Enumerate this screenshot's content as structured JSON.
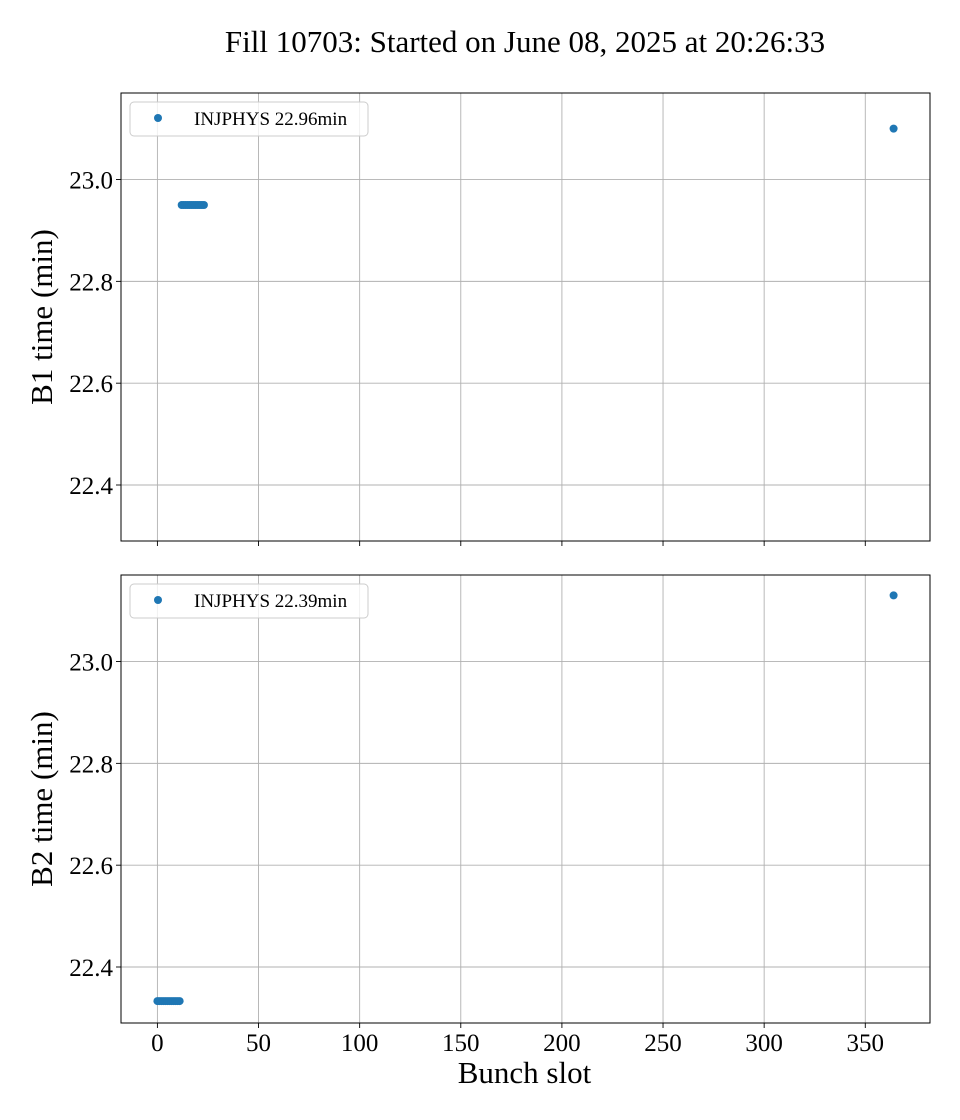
{
  "chart_data": {
    "title": "Fill 10703: Started on June 08, 2025 at 20:26:33",
    "panels": [
      {
        "type": "scatter",
        "ylabel": "B1 time (min)",
        "xlabel": "",
        "legend": {
          "label": "INJPHYS 22.96min",
          "placement": "top-left"
        },
        "xlim": [
          -18,
          382
        ],
        "ylim": [
          22.29,
          23.17
        ],
        "xticks": [
          0,
          50,
          100,
          150,
          200,
          250,
          300,
          350
        ],
        "yticks": [
          22.4,
          22.6,
          22.8,
          23.0
        ],
        "ytick_labels": [
          "22.4",
          "22.6",
          "22.8",
          "23.0"
        ],
        "xtick_labels_visible": false,
        "grid": true,
        "color": "#1f77b4",
        "series": [
          {
            "name": "INJPHYS 22.96min",
            "x": [
              12,
              13,
              14,
              15,
              16,
              17,
              18,
              19,
              20,
              21,
              22,
              23,
              364
            ],
            "y": [
              22.95,
              22.95,
              22.95,
              22.95,
              22.95,
              22.95,
              22.95,
              22.95,
              22.95,
              22.95,
              22.95,
              22.95,
              23.1
            ]
          }
        ]
      },
      {
        "type": "scatter",
        "ylabel": "B2 time (min)",
        "xlabel": "Bunch slot",
        "legend": {
          "label": "INJPHYS 22.39min",
          "placement": "top-left"
        },
        "xlim": [
          -18,
          382
        ],
        "ylim": [
          22.29,
          23.17
        ],
        "xticks": [
          0,
          50,
          100,
          150,
          200,
          250,
          300,
          350
        ],
        "xtick_labels": [
          "0",
          "50",
          "100",
          "150",
          "200",
          "250",
          "300",
          "350"
        ],
        "yticks": [
          22.4,
          22.6,
          22.8,
          23.0
        ],
        "ytick_labels": [
          "22.4",
          "22.6",
          "22.8",
          "23.0"
        ],
        "xtick_labels_visible": true,
        "grid": true,
        "color": "#1f77b4",
        "series": [
          {
            "name": "INJPHYS 22.39min",
            "x": [
              0,
              1,
              2,
              3,
              4,
              5,
              6,
              7,
              8,
              9,
              10,
              11,
              364
            ],
            "y": [
              22.333,
              22.333,
              22.333,
              22.333,
              22.333,
              22.333,
              22.333,
              22.333,
              22.333,
              22.333,
              22.333,
              22.333,
              23.13
            ]
          }
        ]
      }
    ]
  }
}
